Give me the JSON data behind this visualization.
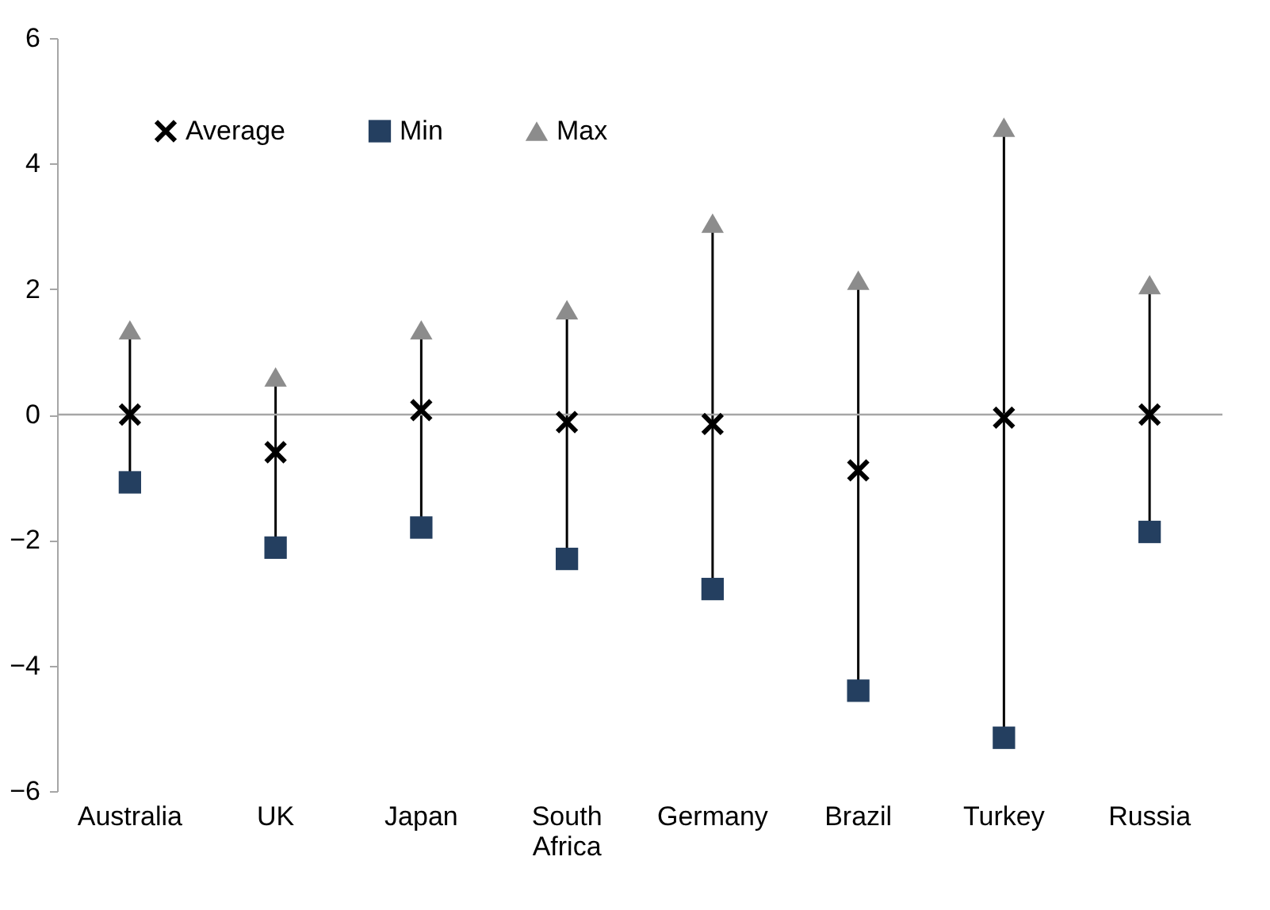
{
  "chart_data": {
    "type": "scatter",
    "categories": [
      "Australia",
      "UK",
      "Japan",
      "South Africa",
      "Germany",
      "Brazil",
      "Turkey",
      "Russia"
    ],
    "series": [
      {
        "name": "Average",
        "color": "#000000",
        "marker": "cross",
        "values": [
          0,
          -0.6,
          0.07,
          -0.12,
          -0.15,
          -0.89,
          -0.05,
          0
        ]
      },
      {
        "name": "Min",
        "color": "#243f60",
        "marker": "square",
        "values": [
          -1.08,
          -2.12,
          -1.8,
          -2.3,
          -2.78,
          -4.4,
          -5.15,
          -1.87
        ]
      },
      {
        "name": "Max",
        "color": "#8c8c8c",
        "marker": "triangle",
        "values": [
          1.35,
          0.6,
          1.35,
          1.67,
          3.05,
          2.14,
          4.58,
          2.07
        ]
      }
    ],
    "ylim": [
      -6,
      6
    ],
    "yticks": [
      -6,
      -4,
      -2,
      0,
      2,
      4,
      6
    ],
    "grid": false,
    "legend": "top",
    "ref_lines": [
      {
        "axis": "y",
        "value": 0,
        "color": "#a6a6a6"
      }
    ]
  }
}
